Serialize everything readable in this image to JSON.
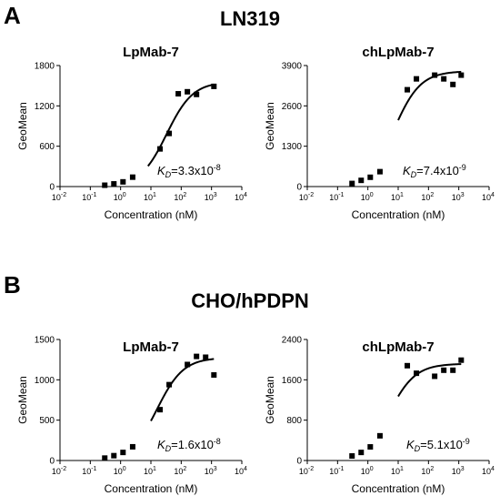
{
  "panels": [
    {
      "letter": "A",
      "title": "LN319"
    },
    {
      "letter": "B",
      "title": "CHO/hPDPN"
    }
  ],
  "chart_data": [
    {
      "type": "scatter",
      "panel": "A",
      "title": "LpMab-7",
      "xlabel": "Concentration (nM)",
      "ylabel": "GeoMean",
      "xscale": "log",
      "xlim": [
        0.01,
        10000
      ],
      "xticks": [
        "10",
        "10",
        "10",
        "10",
        "10",
        "10",
        "10"
      ],
      "xtick_exponents": [
        "-2",
        "-1",
        "0",
        "1",
        "2",
        "3",
        "4"
      ],
      "ylim": [
        0,
        1800
      ],
      "yticks": [
        0,
        600,
        1200,
        1800
      ],
      "ytick_labels": [
        "0",
        "600",
        "1200",
        "1800"
      ],
      "annotation": {
        "prefix": "K",
        "subscript": "D",
        "text": "=3.3x10",
        "exponent": "-8"
      },
      "points": [
        {
          "x": 0.3,
          "y": 20
        },
        {
          "x": 0.6,
          "y": 40
        },
        {
          "x": 1.2,
          "y": 70
        },
        {
          "x": 2.5,
          "y": 140
        },
        {
          "x": 20,
          "y": 560
        },
        {
          "x": 40,
          "y": 790
        },
        {
          "x": 80,
          "y": 1380
        },
        {
          "x": 160,
          "y": 1410
        },
        {
          "x": 320,
          "y": 1370
        },
        {
          "x": 1200,
          "y": 1490
        }
      ],
      "fit": {
        "kd": 33,
        "bmax": 1560,
        "xrange": [
          8,
          1200
        ]
      }
    },
    {
      "type": "scatter",
      "panel": "A",
      "title": "chLpMab-7",
      "xlabel": "Concentration (nM)",
      "ylabel": "GeoMean",
      "xscale": "log",
      "xlim": [
        0.01,
        10000
      ],
      "xticks": [
        "10",
        "10",
        "10",
        "10",
        "10",
        "10",
        "10"
      ],
      "xtick_exponents": [
        "-2",
        "-1",
        "0",
        "1",
        "2",
        "3",
        "4"
      ],
      "ylim": [
        0,
        3900
      ],
      "yticks": [
        0,
        1300,
        2600,
        3900
      ],
      "ytick_labels": [
        "0",
        "1300",
        "2600",
        "3900"
      ],
      "annotation": {
        "prefix": "K",
        "subscript": "D",
        "text": "=7.4x10",
        "exponent": "-9"
      },
      "points": [
        {
          "x": 0.3,
          "y": 100
        },
        {
          "x": 0.6,
          "y": 200
        },
        {
          "x": 1.2,
          "y": 300
        },
        {
          "x": 2.5,
          "y": 480
        },
        {
          "x": 20,
          "y": 3120
        },
        {
          "x": 40,
          "y": 3470
        },
        {
          "x": 160,
          "y": 3590
        },
        {
          "x": 320,
          "y": 3470
        },
        {
          "x": 640,
          "y": 3290
        },
        {
          "x": 1200,
          "y": 3590
        }
      ],
      "fit": {
        "kd": 7.4,
        "bmax": 3720,
        "xrange": [
          10,
          1200
        ]
      }
    },
    {
      "type": "scatter",
      "panel": "B",
      "title": "LpMab-7",
      "xlabel": "Concentration (nM)",
      "ylabel": "GeoMean",
      "xscale": "log",
      "xlim": [
        0.01,
        10000
      ],
      "xticks": [
        "10",
        "10",
        "10",
        "10",
        "10",
        "10",
        "10"
      ],
      "xtick_exponents": [
        "-2",
        "-1",
        "0",
        "1",
        "2",
        "3",
        "4"
      ],
      "ylim": [
        0,
        1500
      ],
      "yticks": [
        0,
        500,
        1000,
        1500
      ],
      "ytick_labels": [
        "0",
        "500",
        "1000",
        "1500"
      ],
      "annotation": {
        "prefix": "K",
        "subscript": "D",
        "text": "=1.6x10",
        "exponent": "-8"
      },
      "points": [
        {
          "x": 0.3,
          "y": 30
        },
        {
          "x": 0.6,
          "y": 60
        },
        {
          "x": 1.2,
          "y": 100
        },
        {
          "x": 2.5,
          "y": 170
        },
        {
          "x": 20,
          "y": 630
        },
        {
          "x": 40,
          "y": 940
        },
        {
          "x": 160,
          "y": 1190
        },
        {
          "x": 320,
          "y": 1290
        },
        {
          "x": 640,
          "y": 1280
        },
        {
          "x": 1200,
          "y": 1060
        }
      ],
      "fit": {
        "kd": 16,
        "bmax": 1275,
        "xrange": [
          10,
          1200
        ]
      }
    },
    {
      "type": "scatter",
      "panel": "B",
      "title": "chLpMab-7",
      "xlabel": "Concentration (nM)",
      "ylabel": "GeoMean",
      "xscale": "log",
      "xlim": [
        0.01,
        10000
      ],
      "xticks": [
        "10",
        "10",
        "10",
        "10",
        "10",
        "10",
        "10"
      ],
      "xtick_exponents": [
        "-2",
        "-1",
        "0",
        "1",
        "2",
        "3",
        "4"
      ],
      "ylim": [
        0,
        2400
      ],
      "yticks": [
        0,
        800,
        1600,
        2400
      ],
      "ytick_labels": [
        "0",
        "800",
        "1600",
        "2400"
      ],
      "annotation": {
        "prefix": "K",
        "subscript": "D",
        "text": "=5.1x10",
        "exponent": "-9"
      },
      "points": [
        {
          "x": 0.3,
          "y": 90
        },
        {
          "x": 0.6,
          "y": 160
        },
        {
          "x": 1.2,
          "y": 270
        },
        {
          "x": 2.5,
          "y": 490
        },
        {
          "x": 20,
          "y": 1880
        },
        {
          "x": 40,
          "y": 1730
        },
        {
          "x": 160,
          "y": 1670
        },
        {
          "x": 320,
          "y": 1790
        },
        {
          "x": 640,
          "y": 1790
        },
        {
          "x": 1200,
          "y": 1990
        }
      ],
      "fit": {
        "kd": 5.1,
        "bmax": 1920,
        "xrange": [
          10,
          1200
        ]
      }
    }
  ]
}
